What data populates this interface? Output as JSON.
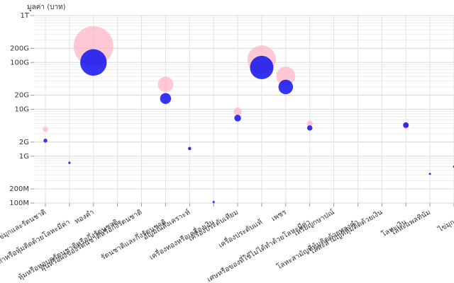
{
  "chart_data": {
    "type": "bubble",
    "y_label": "มูลค่า (บาท)",
    "log_y": true,
    "grid": true,
    "categories": [
      "ด้วยไข่มุกและรัตนชาติ",
      "ขึ้นทุกทำหรือหุ้มติดด้วยโลหะมีค่า",
      "ทองคำ",
      "หุ้มหรือหอบดรัตนชาติหรือกึ่งรัตนชาติ",
      "ฝุ่นหรือผงของรัตนชาติหรือกึ่งรัตนชาติ",
      "รัตนชาติและกึ่งรัตนชาติ",
      "อัญมณีสังเคราะห์",
      "เครื่องทองหรือเครื่องเงิน",
      "เครื่องประดับเทียม",
      "เครื่องประดับแท้",
      "เพชร",
      "เศษหรือของที่ใช้ไม่ได้ทำด้วยโลหะมีค่า",
      "เหรียญกษาปณ์",
      "โลหะสามัญที่หุ้มติดด้วยทองคำ",
      "โลหะสามัญที่หุ้มติดด้วยเงิน",
      "โลหะเงิน",
      "โลหะแพลทินัม",
      "ไข่มุก"
    ],
    "series": [
      {
        "color": "#ffb6c6",
        "values": [
          3750000000,
          750000000,
          224000000000,
          null,
          null,
          34000000000,
          1500000000,
          110000000,
          9000000000,
          115000000000,
          51000000000,
          4950000000,
          null,
          null,
          null,
          4300000000,
          null,
          null
        ]
      },
      {
        "color": "#1010ee",
        "values": [
          2150000000,
          720000000,
          100000000000,
          null,
          null,
          17000000000,
          1450000000,
          105000000,
          6500000000,
          78000000000,
          30000000000,
          4000000000,
          null,
          null,
          null,
          4600000000,
          420000000,
          600000000
        ]
      }
    ],
    "ylim": [
      100000000,
      1000000000000
    ],
    "yticks": [
      {
        "value": 100000000,
        "label": "100M"
      },
      {
        "value": 200000000,
        "label": "200M"
      },
      {
        "value": 1000000000,
        "label": "1G"
      },
      {
        "value": 2000000000,
        "label": "2G"
      },
      {
        "value": 10000000000,
        "label": "10G"
      },
      {
        "value": 20000000000,
        "label": "20G"
      },
      {
        "value": 100000000000,
        "label": "100G"
      },
      {
        "value": 200000000000,
        "label": "200G"
      },
      {
        "value": 1000000000000,
        "label": "1T"
      }
    ]
  }
}
